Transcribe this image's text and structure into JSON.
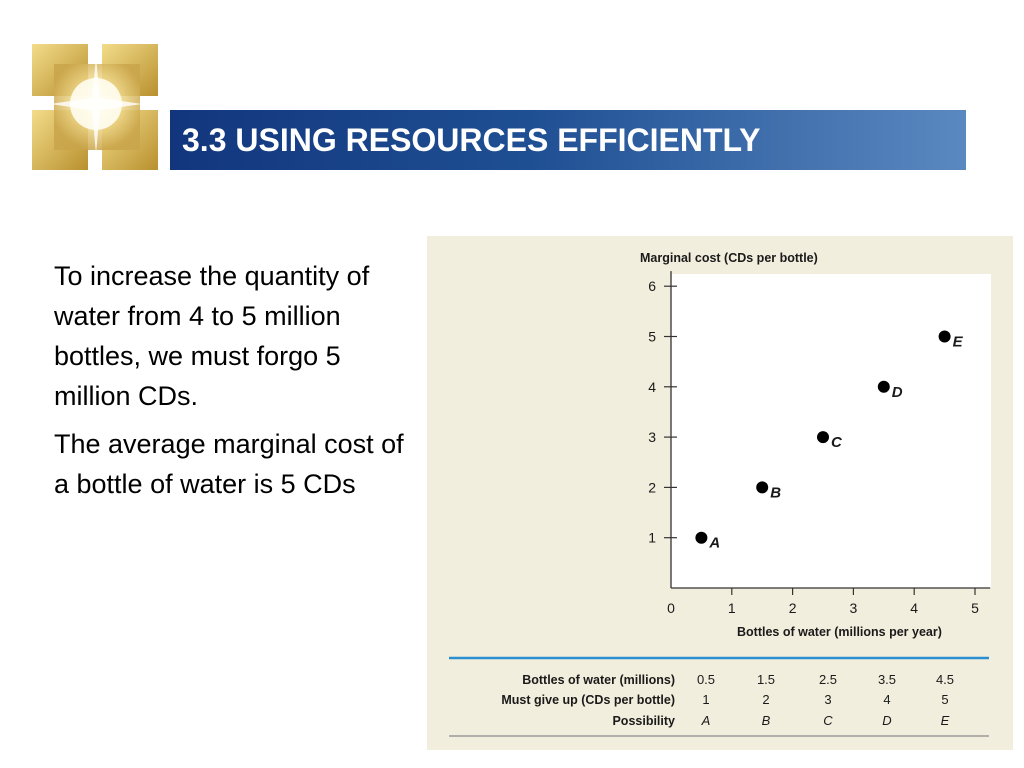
{
  "slide": {
    "title": "3.3 USING RESOURCES EFFICIENTLY",
    "paragraphs": [
      "To increase the quantity of water from 4 to 5 million bottles, we must forgo 5 million CDs.",
      "The average marginal cost of a bottle of water is 5 CDs"
    ]
  },
  "colors": {
    "banner_dark": "#12367e",
    "banner_light": "#5a88c0",
    "figure_background": "#f2eedd",
    "table_rule": "#2a8fd0"
  },
  "chart_data": {
    "type": "scatter",
    "title": "",
    "xlabel": "Bottles of water (millions per year)",
    "ylabel": "Marginal cost (CDs per bottle)",
    "xlim": [
      0,
      5.25
    ],
    "ylim": [
      0,
      6.3
    ],
    "xticks": [
      0,
      1,
      2,
      3,
      4,
      5
    ],
    "yticks": [
      1,
      2,
      3,
      4,
      5,
      6
    ],
    "grid": false,
    "points": [
      {
        "label": "A",
        "x": 0.5,
        "y": 1
      },
      {
        "label": "B",
        "x": 1.5,
        "y": 2
      },
      {
        "label": "C",
        "x": 2.5,
        "y": 3
      },
      {
        "label": "D",
        "x": 3.5,
        "y": 4
      },
      {
        "label": "E",
        "x": 4.5,
        "y": 5
      }
    ],
    "table": {
      "rows": [
        {
          "header": "Bottles of water (millions)",
          "values": [
            "0.5",
            "1.5",
            "2.5",
            "3.5",
            "4.5"
          ]
        },
        {
          "header": "Must give up (CDs per bottle)",
          "values": [
            "1",
            "2",
            "3",
            "4",
            "5"
          ]
        },
        {
          "header": "Possibility",
          "values": [
            "A",
            "B",
            "C",
            "D",
            "E"
          ]
        }
      ]
    }
  }
}
